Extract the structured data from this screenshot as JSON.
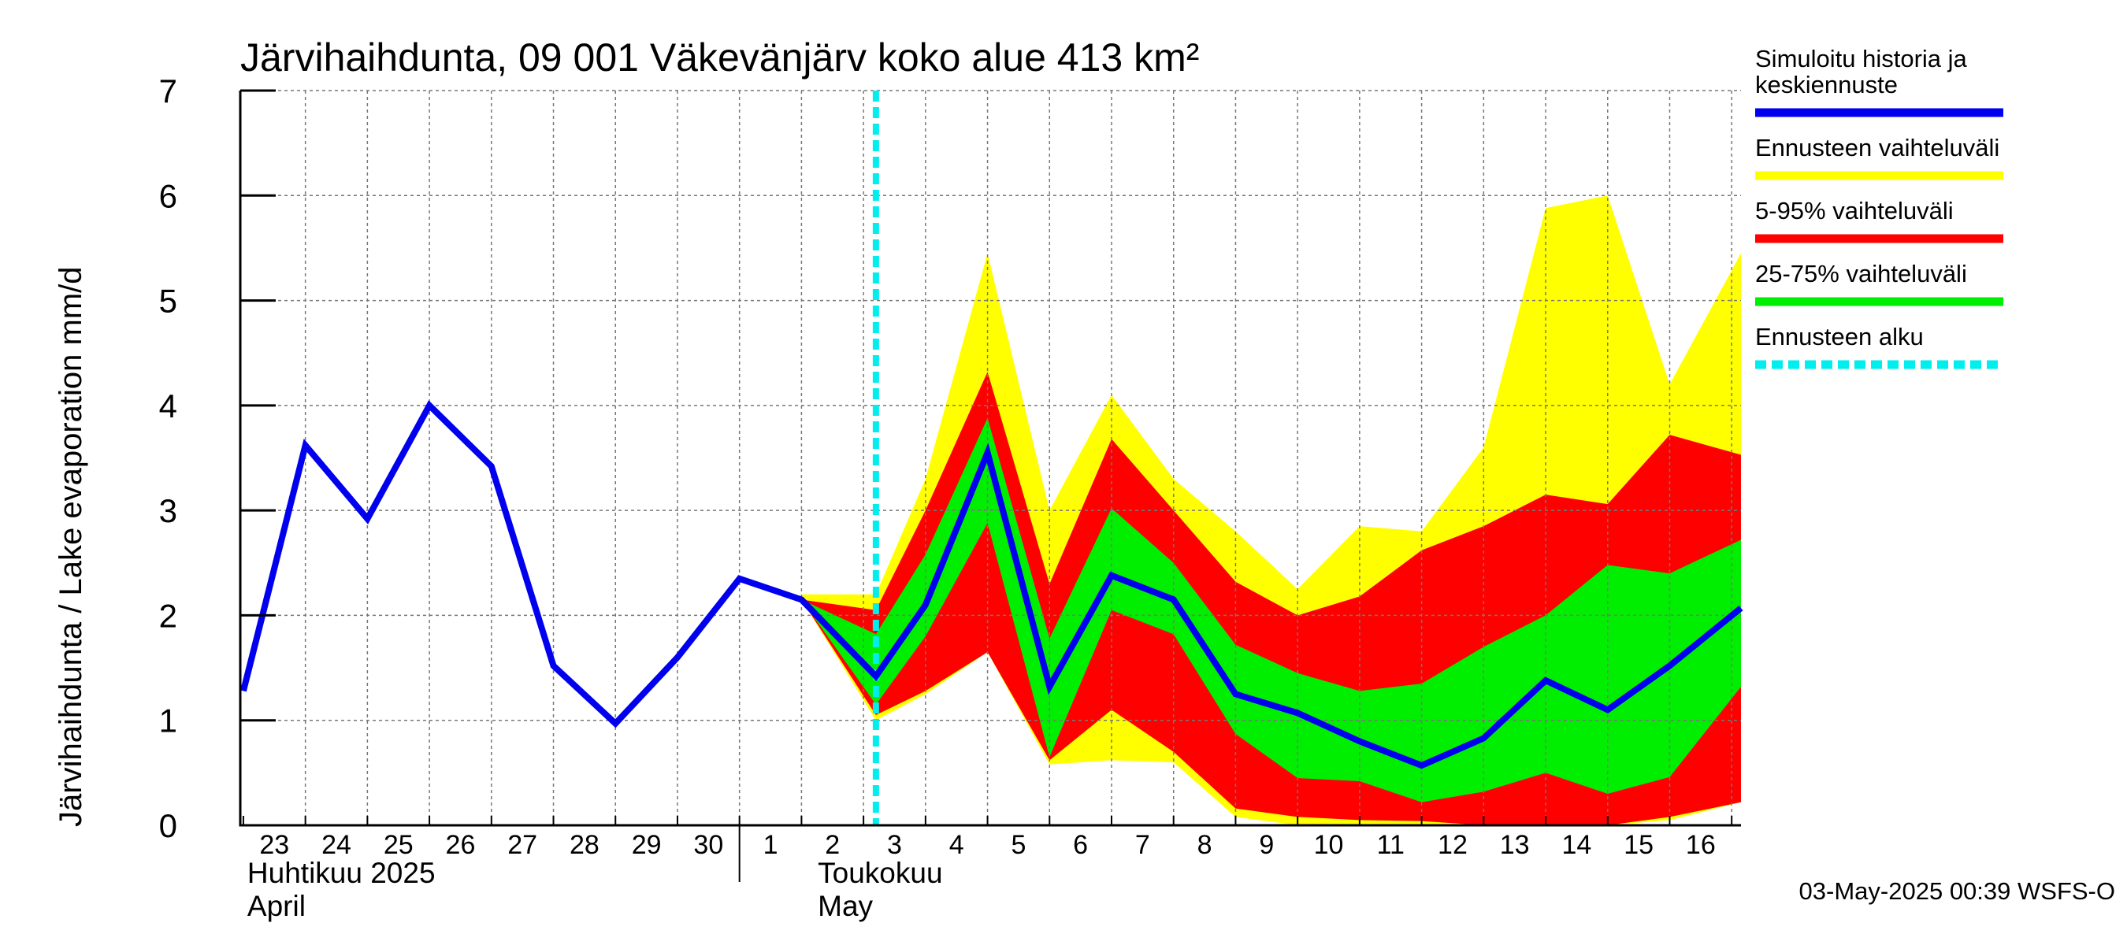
{
  "chart_data": {
    "type": "area",
    "title": "Järvihaihdunta, 09 001 Väkevänjärv koko alue 413 km²",
    "ylabel": "Järvihaihdunta / Lake evaporation   mm/d",
    "ylim": [
      0,
      7
    ],
    "yticks": [
      "0",
      "1",
      "2",
      "3",
      "4",
      "5",
      "6",
      "7"
    ],
    "xlim": [
      -0.05,
      24.15
    ],
    "x_tick_labels": [
      "23",
      "24",
      "25",
      "26",
      "27",
      "28",
      "29",
      "30",
      "1",
      "2",
      "3",
      "4",
      "5",
      "6",
      "7",
      "8",
      "9",
      "10",
      "11",
      "12",
      "13",
      "14",
      "15",
      "16"
    ],
    "month_labels": [
      {
        "line1": "Huhtikuu  2025",
        "line2": "April",
        "x": 0
      },
      {
        "line1": "Toukokuu",
        "line2": "May",
        "x": 9.2
      }
    ],
    "month_separator_x": 8,
    "forecast_start_x": 10.2,
    "grid": true,
    "colors": {
      "history": "#0000ee",
      "range_full": "#ffff00",
      "range_5_95": "#ff0000",
      "range_25_75": "#00ee00",
      "forecast_start": "#00eeee"
    },
    "series": [
      {
        "name": "Simuloitu historia ja keskiennuste",
        "x": [
          0,
          1,
          2,
          3,
          4,
          5,
          6,
          7,
          8,
          9,
          10.2,
          11,
          12,
          13,
          14,
          15,
          16,
          17,
          18,
          19,
          20,
          21,
          22,
          23,
          24.15
        ],
        "values": [
          1.28,
          3.62,
          2.92,
          4.0,
          3.42,
          1.52,
          0.97,
          1.6,
          2.35,
          2.15,
          1.42,
          2.1,
          3.55,
          1.32,
          2.38,
          2.15,
          1.25,
          1.07,
          0.8,
          0.57,
          0.83,
          1.38,
          1.1,
          1.52,
          2.07
        ]
      }
    ],
    "bands": [
      {
        "name": "Ennusteen vaihteluväli",
        "x": [
          9,
          10.2,
          11,
          12,
          13,
          14,
          15,
          16,
          17,
          18,
          19,
          20,
          21,
          22,
          23,
          24.15
        ],
        "upper": [
          2.2,
          2.2,
          3.3,
          5.45,
          3.0,
          4.1,
          3.3,
          2.8,
          2.25,
          2.85,
          2.8,
          3.6,
          5.88,
          6.0,
          4.2,
          5.45
        ],
        "lower": [
          2.15,
          1.0,
          1.25,
          1.65,
          0.58,
          0.62,
          0.6,
          0.08,
          0.0,
          0.0,
          0.0,
          0.0,
          0.0,
          0.0,
          0.05,
          0.22
        ]
      },
      {
        "name": "5-95% vaihteluväli",
        "x": [
          9,
          10.2,
          11,
          12,
          13,
          14,
          15,
          16,
          17,
          18,
          19,
          20,
          21,
          22,
          23,
          24.15
        ],
        "upper": [
          2.15,
          2.05,
          3.0,
          4.32,
          2.3,
          3.68,
          3.0,
          2.32,
          2.0,
          2.18,
          2.62,
          2.85,
          3.15,
          3.06,
          3.72,
          3.53
        ],
        "lower": [
          2.15,
          1.05,
          1.28,
          1.65,
          0.62,
          1.1,
          0.7,
          0.16,
          0.08,
          0.05,
          0.04,
          0.0,
          0.0,
          0.0,
          0.08,
          0.22
        ]
      },
      {
        "name": "25-75% vaihteluväli",
        "x": [
          9,
          10.2,
          11,
          12,
          13,
          14,
          15,
          16,
          17,
          18,
          19,
          20,
          21,
          22,
          23,
          24.15
        ],
        "upper": [
          2.15,
          1.82,
          2.58,
          3.88,
          1.78,
          3.02,
          2.5,
          1.72,
          1.45,
          1.28,
          1.35,
          1.7,
          2.0,
          2.48,
          2.4,
          2.72
        ],
        "lower": [
          2.15,
          1.15,
          1.8,
          2.88,
          0.65,
          2.05,
          1.82,
          0.87,
          0.45,
          0.42,
          0.22,
          0.32,
          0.5,
          0.3,
          0.46,
          1.32
        ]
      }
    ],
    "legend": {
      "position": "right",
      "items": [
        {
          "text_lines": [
            "Simuloitu historia ja",
            "keskiennuste"
          ],
          "color": "#0000ee",
          "style": "solid"
        },
        {
          "text_lines": [
            "Ennusteen vaihteluväli"
          ],
          "color": "#ffff00",
          "style": "solid"
        },
        {
          "text_lines": [
            "5-95% vaihteluväli"
          ],
          "color": "#ff0000",
          "style": "solid"
        },
        {
          "text_lines": [
            "25-75% vaihteluväli"
          ],
          "color": "#00ee00",
          "style": "solid"
        },
        {
          "text_lines": [
            "Ennusteen alku"
          ],
          "color": "#00eeee",
          "style": "dashed"
        }
      ]
    },
    "footer": "03-May-2025 00:39 WSFS-O"
  }
}
